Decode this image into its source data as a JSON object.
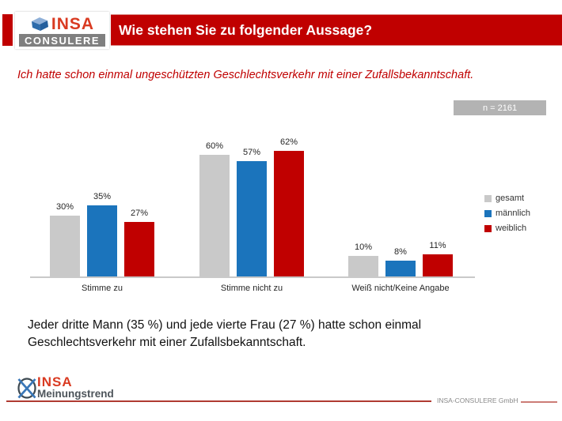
{
  "header": {
    "logo_insa": "INSA",
    "logo_consulere": "CONSULERE",
    "title": "Wie stehen Sie zu folgender Aussage?"
  },
  "statement": "Ich hatte schon einmal ungeschützten Geschlechtsverkehr mit einer Zufallsbekanntschaft.",
  "sample_badge": "n = 2161",
  "chart_data": {
    "type": "bar",
    "categories": [
      "Stimme zu",
      "Stimme nicht zu",
      "Weiß nicht/Keine Angabe"
    ],
    "series": [
      {
        "name": "gesamt",
        "color": "#c9c9c9",
        "values": [
          30,
          60,
          10
        ]
      },
      {
        "name": "männlich",
        "color": "#1b74bc",
        "values": [
          35,
          57,
          8
        ]
      },
      {
        "name": "weiblich",
        "color": "#c00000",
        "values": [
          27,
          62,
          11
        ]
      }
    ],
    "value_suffix": "%",
    "ylim": [
      0,
      70
    ],
    "grid": false,
    "legend_position": "right"
  },
  "finding_text": "Jeder dritte Mann (35 %) und jede vierte Frau (27 %) hatte schon einmal Geschlechtsverkehr mit einer Zufallsbekanntschaft.",
  "footer": {
    "logo_insa": "INSA",
    "logo_sub": "Meinungstrend",
    "company": "INSA-CONSULERE GmbH"
  },
  "colors": {
    "banner_red": "#c00000",
    "logo_red": "#d93a21",
    "badge_gray": "#b3b3b3",
    "axis_gray": "#c9c9c9"
  }
}
